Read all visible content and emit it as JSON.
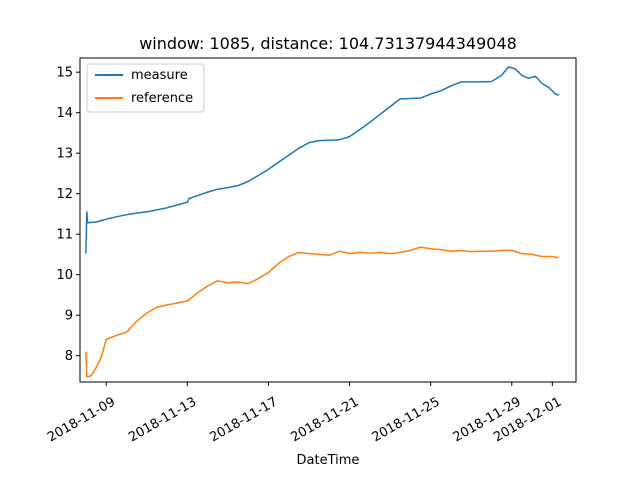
{
  "chart_data": {
    "type": "line",
    "title": "window: 1085, distance: 104.73137944349048",
    "xlabel": "DateTime",
    "ylabel": "",
    "x_type": "date",
    "xlim": [
      "2018-11-07T17:00",
      "2018-12-02T04:00"
    ],
    "ylim": [
      7.35,
      15.35
    ],
    "x_ticks": [
      "2018-11-09",
      "2018-11-13",
      "2018-11-17",
      "2018-11-21",
      "2018-11-25",
      "2018-11-29",
      "2018-12-01"
    ],
    "y_ticks": [
      8,
      9,
      10,
      11,
      12,
      13,
      14,
      15
    ],
    "grid": false,
    "legend": "upper-left",
    "series": [
      {
        "name": "measure",
        "color": "#1f77b4",
        "points": [
          [
            "2018-11-08T00:00",
            10.52
          ],
          [
            "2018-11-08T01:00",
            11.55
          ],
          [
            "2018-11-08T02:00",
            11.28
          ],
          [
            "2018-11-08T12:00",
            11.3
          ],
          [
            "2018-11-09T00:00",
            11.37
          ],
          [
            "2018-11-09T12:00",
            11.43
          ],
          [
            "2018-11-10T00:00",
            11.48
          ],
          [
            "2018-11-10T12:00",
            11.52
          ],
          [
            "2018-11-11T00:00",
            11.55
          ],
          [
            "2018-11-11T12:00",
            11.6
          ],
          [
            "2018-11-12T00:00",
            11.65
          ],
          [
            "2018-11-12T12:00",
            11.72
          ],
          [
            "2018-11-13T00:00",
            11.79
          ],
          [
            "2018-11-13T02:00",
            11.88
          ],
          [
            "2018-11-13T12:00",
            11.95
          ],
          [
            "2018-11-14T00:00",
            12.04
          ],
          [
            "2018-11-14T12:00",
            12.11
          ],
          [
            "2018-11-15T00:00",
            12.15
          ],
          [
            "2018-11-15T12:00",
            12.2
          ],
          [
            "2018-11-16T00:00",
            12.3
          ],
          [
            "2018-11-16T12:00",
            12.45
          ],
          [
            "2018-11-17T00:00",
            12.6
          ],
          [
            "2018-11-17T12:00",
            12.78
          ],
          [
            "2018-11-18T00:00",
            12.95
          ],
          [
            "2018-11-18T12:00",
            13.12
          ],
          [
            "2018-11-19T00:00",
            13.26
          ],
          [
            "2018-11-19T12:00",
            13.31
          ],
          [
            "2018-11-20T00:00",
            13.32
          ],
          [
            "2018-11-20T12:00",
            13.33
          ],
          [
            "2018-11-21T00:00",
            13.41
          ],
          [
            "2018-11-21T12:00",
            13.58
          ],
          [
            "2018-11-22T00:00",
            13.76
          ],
          [
            "2018-11-22T12:00",
            13.96
          ],
          [
            "2018-11-23T00:00",
            14.15
          ],
          [
            "2018-11-23T12:00",
            14.34
          ],
          [
            "2018-11-24T00:00",
            14.35
          ],
          [
            "2018-11-24T12:00",
            14.36
          ],
          [
            "2018-11-25T00:00",
            14.46
          ],
          [
            "2018-11-25T12:00",
            14.54
          ],
          [
            "2018-11-26T00:00",
            14.66
          ],
          [
            "2018-11-26T12:00",
            14.76
          ],
          [
            "2018-11-27T00:00",
            14.76
          ],
          [
            "2018-11-27T12:00",
            14.76
          ],
          [
            "2018-11-28T00:00",
            14.77
          ],
          [
            "2018-11-28T12:00",
            14.92
          ],
          [
            "2018-11-28T20:00",
            15.13
          ],
          [
            "2018-11-29T04:00",
            15.08
          ],
          [
            "2018-11-29T12:00",
            14.92
          ],
          [
            "2018-11-29T20:00",
            14.85
          ],
          [
            "2018-11-30T04:00",
            14.9
          ],
          [
            "2018-11-30T12:00",
            14.72
          ],
          [
            "2018-11-30T20:00",
            14.62
          ],
          [
            "2018-12-01T04:00",
            14.45
          ],
          [
            "2018-12-01T08:00",
            14.44
          ]
        ]
      },
      {
        "name": "reference",
        "color": "#ff7f0e",
        "points": [
          [
            "2018-11-08T00:00",
            8.1
          ],
          [
            "2018-11-08T01:00",
            7.48
          ],
          [
            "2018-11-08T06:00",
            7.5
          ],
          [
            "2018-11-08T12:00",
            7.7
          ],
          [
            "2018-11-08T18:00",
            7.95
          ],
          [
            "2018-11-09T00:00",
            8.4
          ],
          [
            "2018-11-09T12:00",
            8.5
          ],
          [
            "2018-11-10T00:00",
            8.58
          ],
          [
            "2018-11-10T12:00",
            8.85
          ],
          [
            "2018-11-11T00:00",
            9.05
          ],
          [
            "2018-11-11T12:00",
            9.2
          ],
          [
            "2018-11-12T00:00",
            9.25
          ],
          [
            "2018-11-12T12:00",
            9.3
          ],
          [
            "2018-11-13T00:00",
            9.35
          ],
          [
            "2018-11-13T12:00",
            9.55
          ],
          [
            "2018-11-14T00:00",
            9.72
          ],
          [
            "2018-11-14T12:00",
            9.85
          ],
          [
            "2018-11-15T00:00",
            9.8
          ],
          [
            "2018-11-15T12:00",
            9.82
          ],
          [
            "2018-11-16T00:00",
            9.78
          ],
          [
            "2018-11-16T12:00",
            9.9
          ],
          [
            "2018-11-17T00:00",
            10.05
          ],
          [
            "2018-11-17T12:00",
            10.28
          ],
          [
            "2018-11-18T00:00",
            10.45
          ],
          [
            "2018-11-18T12:00",
            10.55
          ],
          [
            "2018-11-19T00:00",
            10.52
          ],
          [
            "2018-11-19T12:00",
            10.5
          ],
          [
            "2018-11-20T00:00",
            10.48
          ],
          [
            "2018-11-20T12:00",
            10.58
          ],
          [
            "2018-11-21T00:00",
            10.52
          ],
          [
            "2018-11-21T12:00",
            10.55
          ],
          [
            "2018-11-22T00:00",
            10.53
          ],
          [
            "2018-11-22T12:00",
            10.55
          ],
          [
            "2018-11-23T00:00",
            10.52
          ],
          [
            "2018-11-23T12:00",
            10.55
          ],
          [
            "2018-11-24T00:00",
            10.6
          ],
          [
            "2018-11-24T12:00",
            10.68
          ],
          [
            "2018-11-25T00:00",
            10.64
          ],
          [
            "2018-11-25T12:00",
            10.62
          ],
          [
            "2018-11-26T00:00",
            10.58
          ],
          [
            "2018-11-26T12:00",
            10.6
          ],
          [
            "2018-11-27T00:00",
            10.57
          ],
          [
            "2018-11-27T12:00",
            10.58
          ],
          [
            "2018-11-28T00:00",
            10.58
          ],
          [
            "2018-11-28T12:00",
            10.6
          ],
          [
            "2018-11-29T00:00",
            10.6
          ],
          [
            "2018-11-29T12:00",
            10.52
          ],
          [
            "2018-11-30T00:00",
            10.5
          ],
          [
            "2018-11-30T12:00",
            10.45
          ],
          [
            "2018-12-01T00:00",
            10.45
          ],
          [
            "2018-12-01T08:00",
            10.42
          ]
        ]
      }
    ]
  }
}
